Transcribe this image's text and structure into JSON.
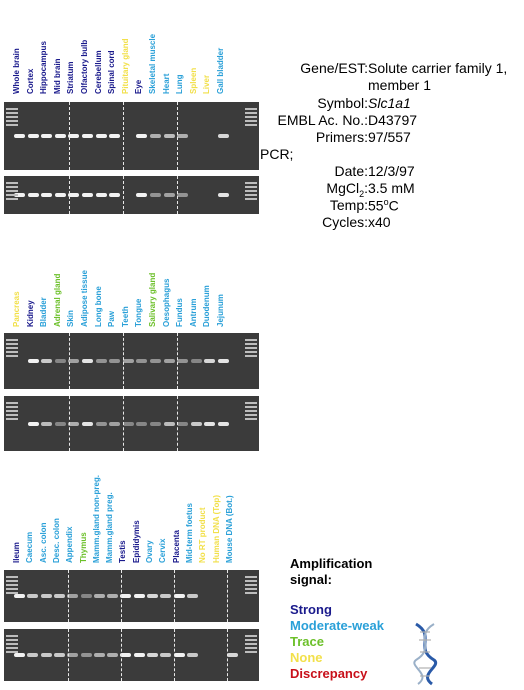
{
  "colors": {
    "strong": "#1a1a8c",
    "moderate_weak": "#2aa0d8",
    "trace": "#6cc02a",
    "none": "#f2e04a",
    "discrepancy": "#c8101a"
  },
  "panels": [
    {
      "lanes": [
        {
          "name": "Whole brain",
          "signal": "strong",
          "band1": 0.9,
          "band2": 0.9
        },
        {
          "name": "Cortex",
          "signal": "strong",
          "band1": 0.9,
          "band2": 0.9
        },
        {
          "name": "Hippocampus",
          "signal": "strong",
          "band1": 0.9,
          "band2": 0.9
        },
        {
          "name": "Mid brain",
          "signal": "strong",
          "band1": 0.9,
          "band2": 0.9
        },
        {
          "name": "Striatum",
          "signal": "strong",
          "band1": 0.9,
          "band2": 0.9
        },
        {
          "name": "Olfactory bulb",
          "signal": "strong",
          "band1": 0.9,
          "band2": 0.9
        },
        {
          "name": "Cerebellum",
          "signal": "strong",
          "band1": 0.9,
          "band2": 0.9
        },
        {
          "name": "Spinal cord",
          "signal": "strong",
          "band1": 0.9,
          "band2": 0.9
        },
        {
          "name": "Pituitary gland",
          "signal": "none",
          "band1": 0.0,
          "band2": 0.0
        },
        {
          "name": "Eye",
          "signal": "strong",
          "band1": 0.9,
          "band2": 0.9
        },
        {
          "name": "Skeletal muscle",
          "signal": "moderate_weak",
          "band1": 0.4,
          "band2": 0.2
        },
        {
          "name": "Heart",
          "signal": "moderate_weak",
          "band1": 0.5,
          "band2": 0.3
        },
        {
          "name": "Lung",
          "signal": "moderate_weak",
          "band1": 0.4,
          "band2": 0.2
        },
        {
          "name": "Spleen",
          "signal": "none",
          "band1": 0.0,
          "band2": 0.0
        },
        {
          "name": "Liver",
          "signal": "none",
          "band1": 0.0,
          "band2": 0.0
        },
        {
          "name": "Gall bladder",
          "signal": "moderate_weak",
          "band1": 0.7,
          "band2": 0.8
        }
      ]
    },
    {
      "lanes": [
        {
          "name": "Pancreas",
          "signal": "none",
          "band1": 0.0,
          "band2": 0.0
        },
        {
          "name": "Kidney",
          "signal": "strong",
          "band1": 0.9,
          "band2": 0.9
        },
        {
          "name": "Bladder",
          "signal": "moderate_weak",
          "band1": 0.6,
          "band2": 0.5
        },
        {
          "name": "Adrenal gland",
          "signal": "trace",
          "band1": 0.1,
          "band2": 0.1
        },
        {
          "name": "Skin",
          "signal": "moderate_weak",
          "band1": 0.3,
          "band2": 0.4
        },
        {
          "name": "Adipose tissue",
          "signal": "moderate_weak",
          "band1": 0.8,
          "band2": 0.8
        },
        {
          "name": "Long bone",
          "signal": "moderate_weak",
          "band1": 0.2,
          "band2": 0.2
        },
        {
          "name": "Paw",
          "signal": "moderate_weak",
          "band1": 0.2,
          "band2": 0.3
        },
        {
          "name": "Teeth",
          "signal": "moderate_weak",
          "band1": 0.3,
          "band2": 0.1
        },
        {
          "name": "Tongue",
          "signal": "moderate_weak",
          "band1": 0.2,
          "band2": 0.1
        },
        {
          "name": "Salivary gland",
          "signal": "trace",
          "band1": 0.2,
          "band2": 0.1
        },
        {
          "name": "Oesophagus",
          "signal": "moderate_weak",
          "band1": 0.3,
          "band2": 0.5
        },
        {
          "name": "Fundus",
          "signal": "moderate_weak",
          "band1": 0.2,
          "band2": 0.1
        },
        {
          "name": "Antrum",
          "signal": "moderate_weak",
          "band1": 0.1,
          "band2": 0.6
        },
        {
          "name": "Duodenum",
          "signal": "moderate_weak",
          "band1": 0.7,
          "band2": 0.8
        },
        {
          "name": "Jejunum",
          "signal": "moderate_weak",
          "band1": 0.8,
          "band2": 0.8
        }
      ]
    },
    {
      "lanes": [
        {
          "name": "Ileum",
          "signal": "strong",
          "band1": 0.9,
          "band2": 0.9
        },
        {
          "name": "Caecum",
          "signal": "moderate_weak",
          "band1": 0.6,
          "band2": 0.6
        },
        {
          "name": "Asc. colon",
          "signal": "moderate_weak",
          "band1": 0.6,
          "band2": 0.6
        },
        {
          "name": "Desc. colon",
          "signal": "moderate_weak",
          "band1": 0.6,
          "band2": 0.6
        },
        {
          "name": "Appendix",
          "signal": "moderate_weak",
          "band1": 0.3,
          "band2": 0.3
        },
        {
          "name": "Thymus",
          "signal": "trace",
          "band1": 0.1,
          "band2": 0.2
        },
        {
          "name": "Mamm.gland non-preg.",
          "signal": "moderate_weak",
          "band1": 0.4,
          "band2": 0.4
        },
        {
          "name": "Mamm.gland preg.",
          "signal": "moderate_weak",
          "band1": 0.4,
          "band2": 0.4
        },
        {
          "name": "Testis",
          "signal": "strong",
          "band1": 0.9,
          "band2": 0.9
        },
        {
          "name": "Epididymis",
          "signal": "strong",
          "band1": 0.9,
          "band2": 0.9
        },
        {
          "name": "Ovary",
          "signal": "moderate_weak",
          "band1": 0.7,
          "band2": 0.7
        },
        {
          "name": "Cervix",
          "signal": "moderate_weak",
          "band1": 0.6,
          "band2": 0.6
        },
        {
          "name": "Placenta",
          "signal": "strong",
          "band1": 0.9,
          "band2": 0.9
        },
        {
          "name": "Mid-term foetus",
          "signal": "moderate_weak",
          "band1": 0.6,
          "band2": 0.6
        },
        {
          "name": "No RT product",
          "signal": "none",
          "band1": 0.0,
          "band2": 0.0
        },
        {
          "name": "Human DNA (Top)",
          "signal": "none",
          "band1": 0.0,
          "band2": 0.0
        },
        {
          "name": "Mouse DNA (Bot.)",
          "signal": "moderate_weak",
          "band1": 0.0,
          "band2": 0.7
        }
      ]
    }
  ],
  "info": {
    "gene_label": "Gene/EST:",
    "gene_value_line1": "Solute carrier family 1,",
    "gene_value_line2": "member 1",
    "symbol_label": "Symbol:",
    "symbol_value": "Slc1a1",
    "embl_label": "EMBL Ac. No.:",
    "embl_value": "D43797",
    "primers_label": "Primers:",
    "primers_value": "97/557",
    "pcr_label": "PCR;",
    "date_label": "Date:",
    "date_value": "12/3/97",
    "mgcl_label": "MgCl",
    "mgcl_sub": "2",
    "mgcl_colon": ":",
    "mgcl_value": "3.5 mM",
    "temp_label": "Temp:",
    "temp_value": "55",
    "temp_unit_sup": "o",
    "temp_unit": "C",
    "cycles_label": "Cycles:",
    "cycles_value": "x40"
  },
  "legend": {
    "title_line1": "Amplification",
    "title_line2": "signal:",
    "strong": "Strong",
    "moderate_weak": "Moderate-weak",
    "trace": "Trace",
    "none": "None",
    "discrepancy": "Discrepancy"
  }
}
